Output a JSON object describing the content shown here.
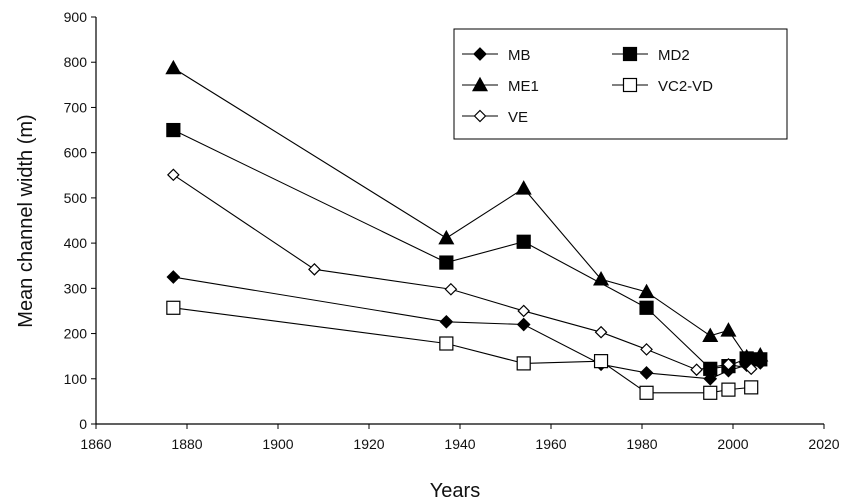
{
  "chart_data": {
    "type": "line",
    "title": "",
    "xlabel": "Years",
    "ylabel": "Mean channel width (m)",
    "xlim": [
      1860,
      2020
    ],
    "ylim": [
      0,
      900
    ],
    "xticks": [
      "1860",
      "1880",
      "1900",
      "1920",
      "1940",
      "1960",
      "1980",
      "2000",
      "2020"
    ],
    "yticks": [
      "0",
      "100",
      "200",
      "300",
      "400",
      "500",
      "600",
      "700",
      "800",
      "900"
    ],
    "grid": false,
    "legend_position": "top-right",
    "series": [
      {
        "name": "MB",
        "marker": "diamond-filled",
        "points": [
          [
            1877,
            325
          ],
          [
            1937,
            226
          ],
          [
            1954,
            220
          ],
          [
            1971,
            132
          ],
          [
            1981,
            113
          ],
          [
            1995,
            100
          ],
          [
            1999,
            118
          ],
          [
            2003,
            130
          ],
          [
            2006,
            135
          ]
        ]
      },
      {
        "name": "MD2",
        "marker": "square-filled",
        "points": [
          [
            1877,
            650
          ],
          [
            1937,
            357
          ],
          [
            1954,
            403
          ],
          [
            1981,
            257
          ],
          [
            1995,
            122
          ],
          [
            1999,
            128
          ],
          [
            2003,
            145
          ],
          [
            2006,
            143
          ]
        ]
      },
      {
        "name": "ME1",
        "marker": "triangle-filled",
        "points": [
          [
            1877,
            787
          ],
          [
            1937,
            411
          ],
          [
            1954,
            521
          ],
          [
            1971,
            320
          ],
          [
            1981,
            292
          ],
          [
            1995,
            195
          ],
          [
            1999,
            207
          ],
          [
            2003,
            148
          ],
          [
            2006,
            152
          ]
        ]
      },
      {
        "name": "VC2-VD",
        "marker": "square-open",
        "points": [
          [
            1877,
            257
          ],
          [
            1937,
            178
          ],
          [
            1954,
            134
          ],
          [
            1971,
            139
          ],
          [
            1981,
            69
          ],
          [
            1995,
            69
          ],
          [
            1999,
            76
          ],
          [
            2004,
            81
          ]
        ]
      },
      {
        "name": "VE",
        "marker": "diamond-open",
        "points": [
          [
            1877,
            551
          ],
          [
            1908,
            342
          ],
          [
            1938,
            298
          ],
          [
            1954,
            250
          ],
          [
            1971,
            203
          ],
          [
            1981,
            165
          ],
          [
            1992,
            120
          ],
          [
            1999,
            132
          ],
          [
            2004,
            122
          ]
        ]
      }
    ]
  }
}
